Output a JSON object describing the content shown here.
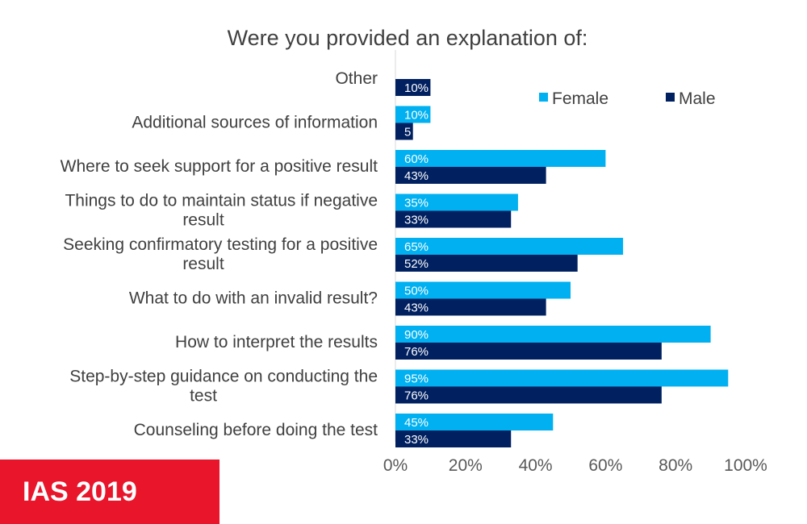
{
  "badge": {
    "text": "IAS 2019",
    "color": "#e8152b"
  },
  "chart_data": {
    "type": "bar",
    "orientation": "horizontal",
    "title": "Were you provided an explanation of:",
    "categories": [
      [
        "Other"
      ],
      [
        "Additional sources of information"
      ],
      [
        "Where to seek support for a positive result"
      ],
      [
        "Things to do to maintain status if negative",
        "result"
      ],
      [
        "Seeking confirmatory testing for a positive",
        "result"
      ],
      [
        "What to do with an invalid result?"
      ],
      [
        "How to interpret the results"
      ],
      [
        "Step-by-step guidance on conducting the",
        "test"
      ],
      [
        "Counseling before doing the test"
      ]
    ],
    "series": [
      {
        "name": "Female",
        "color": "#00b0f0",
        "values": [
          null,
          10,
          60,
          35,
          65,
          50,
          90,
          95,
          45
        ],
        "labels": [
          null,
          "10%",
          "60%",
          "35%",
          "65%",
          "50%",
          "90%",
          "95%",
          "45%"
        ]
      },
      {
        "name": "Male",
        "color": "#002060",
        "values": [
          10,
          5,
          43,
          33,
          52,
          43,
          76,
          76,
          33
        ],
        "labels": [
          "10%",
          "5",
          "43%",
          "33%",
          "52%",
          "43%",
          "76%",
          "76%",
          "33%"
        ]
      }
    ],
    "xlim": [
      0,
      100
    ],
    "xticks": [
      "0%",
      "20%",
      "40%",
      "60%",
      "80%",
      "100%"
    ],
    "xtick_values": [
      0,
      20,
      40,
      60,
      80,
      100
    ],
    "legend_position": "top-right",
    "grid": false
  }
}
